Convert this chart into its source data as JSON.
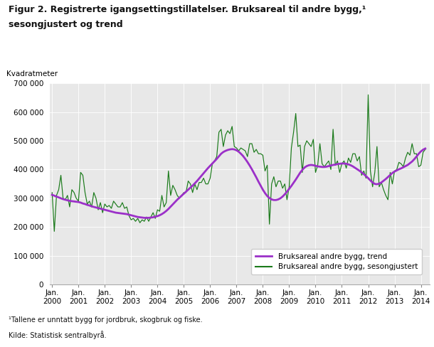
{
  "title_line1": "Figur 2. Registrerte igangsettingstillatelser. Bruksareal til andre bygg,¹",
  "title_line2": "sesongjustert og trend",
  "ylabel": "Kvadratmeter",
  "footnote1": "¹Tallene er unntatt bygg for jordbruk, skogbruk og fiske.",
  "footnote2": "Kilde: Statistisk sentralbyrå.",
  "ylim": [
    0,
    700000
  ],
  "yticks": [
    0,
    100000,
    200000,
    300000,
    400000,
    500000,
    600000,
    700000
  ],
  "ytick_labels": [
    "0",
    "100 000",
    "200 000",
    "300 000",
    "400 000",
    "500 000",
    "600 000",
    "700 000"
  ],
  "xtick_positions": [
    0,
    12,
    24,
    36,
    48,
    60,
    72,
    84,
    96,
    108,
    120,
    132,
    144,
    156,
    168
  ],
  "xtick_labels": [
    "Jan.\n2000",
    "Jan.\n2001",
    "Jan.\n2002",
    "Jan.\n2003",
    "Jan.\n2004",
    "Jan.\n2005",
    "Jan.\n2006",
    "Jan.\n2007",
    "Jan.\n2008",
    "Jan.\n2009",
    "Jan.\n2010",
    "Jan.\n2011",
    "Jan.\n2012",
    "Jan.\n2013",
    "Jan.\n2014"
  ],
  "trend_color": "#9b30c8",
  "seasonal_color": "#1a7a1a",
  "plot_bg_color": "#e8e8e8",
  "fig_bg_color": "#ffffff",
  "legend_entries": [
    "Bruksareal andre bygg, trend",
    "Bruksareal andre bygg, sesongjustert"
  ],
  "seasonal": [
    320000,
    185000,
    310000,
    330000,
    380000,
    300000,
    295000,
    310000,
    270000,
    330000,
    320000,
    300000,
    290000,
    390000,
    380000,
    320000,
    280000,
    290000,
    270000,
    320000,
    300000,
    260000,
    285000,
    250000,
    280000,
    270000,
    275000,
    265000,
    290000,
    280000,
    270000,
    270000,
    285000,
    265000,
    270000,
    240000,
    225000,
    230000,
    220000,
    230000,
    215000,
    225000,
    220000,
    235000,
    220000,
    235000,
    250000,
    230000,
    260000,
    255000,
    310000,
    270000,
    285000,
    395000,
    310000,
    345000,
    330000,
    310000,
    300000,
    310000,
    320000,
    320000,
    360000,
    350000,
    320000,
    350000,
    330000,
    355000,
    355000,
    370000,
    350000,
    350000,
    370000,
    420000,
    430000,
    445000,
    530000,
    540000,
    480000,
    520000,
    535000,
    525000,
    550000,
    480000,
    475000,
    465000,
    475000,
    470000,
    465000,
    445000,
    490000,
    490000,
    460000,
    470000,
    455000,
    455000,
    450000,
    395000,
    415000,
    210000,
    350000,
    375000,
    340000,
    360000,
    360000,
    335000,
    350000,
    295000,
    340000,
    475000,
    530000,
    595000,
    480000,
    485000,
    390000,
    480000,
    500000,
    490000,
    480000,
    505000,
    390000,
    415000,
    490000,
    420000,
    410000,
    420000,
    430000,
    400000,
    540000,
    415000,
    430000,
    390000,
    420000,
    430000,
    405000,
    440000,
    425000,
    455000,
    455000,
    430000,
    445000,
    380000,
    395000,
    370000,
    660000,
    395000,
    340000,
    390000,
    480000,
    340000,
    355000,
    330000,
    310000,
    295000,
    390000,
    350000,
    395000,
    400000,
    425000,
    420000,
    410000,
    440000,
    460000,
    450000,
    490000,
    455000,
    455000,
    410000,
    415000,
    460000,
    470000
  ],
  "trend": [
    312000,
    309000,
    306000,
    303000,
    300000,
    297000,
    295000,
    293000,
    291000,
    290000,
    289000,
    288000,
    287000,
    285000,
    282000,
    280000,
    277000,
    275000,
    272000,
    270000,
    268000,
    266000,
    264000,
    262000,
    260000,
    258000,
    256000,
    254000,
    252000,
    250000,
    249000,
    248000,
    247000,
    246000,
    245000,
    243000,
    241000,
    239000,
    237000,
    235000,
    234000,
    233000,
    232000,
    232000,
    232000,
    233000,
    234000,
    236000,
    238000,
    241000,
    245000,
    250000,
    256000,
    263000,
    271000,
    279000,
    287000,
    295000,
    302000,
    309000,
    316000,
    323000,
    330000,
    337000,
    344000,
    352000,
    360000,
    369000,
    378000,
    387000,
    396000,
    405000,
    413000,
    421000,
    429000,
    437000,
    446000,
    455000,
    461000,
    465000,
    468000,
    470000,
    471000,
    470000,
    467000,
    462000,
    455000,
    447000,
    437000,
    426000,
    414000,
    401000,
    387000,
    373000,
    358000,
    344000,
    330000,
    318000,
    308000,
    301000,
    296000,
    294000,
    294000,
    296000,
    300000,
    306000,
    314000,
    323000,
    333000,
    343000,
    354000,
    365000,
    377000,
    389000,
    399000,
    407000,
    412000,
    415000,
    416000,
    415000,
    413000,
    411000,
    410000,
    409000,
    409000,
    410000,
    412000,
    414000,
    416000,
    417000,
    419000,
    420000,
    421000,
    421000,
    420000,
    418000,
    415000,
    411000,
    406000,
    401000,
    396000,
    390000,
    384000,
    377000,
    370000,
    362000,
    355000,
    350000,
    349000,
    351000,
    355000,
    361000,
    367000,
    374000,
    381000,
    388000,
    393000,
    397000,
    401000,
    404000,
    408000,
    412000,
    416000,
    422000,
    428000,
    436000,
    445000,
    455000,
    463000,
    469000,
    473000
  ]
}
